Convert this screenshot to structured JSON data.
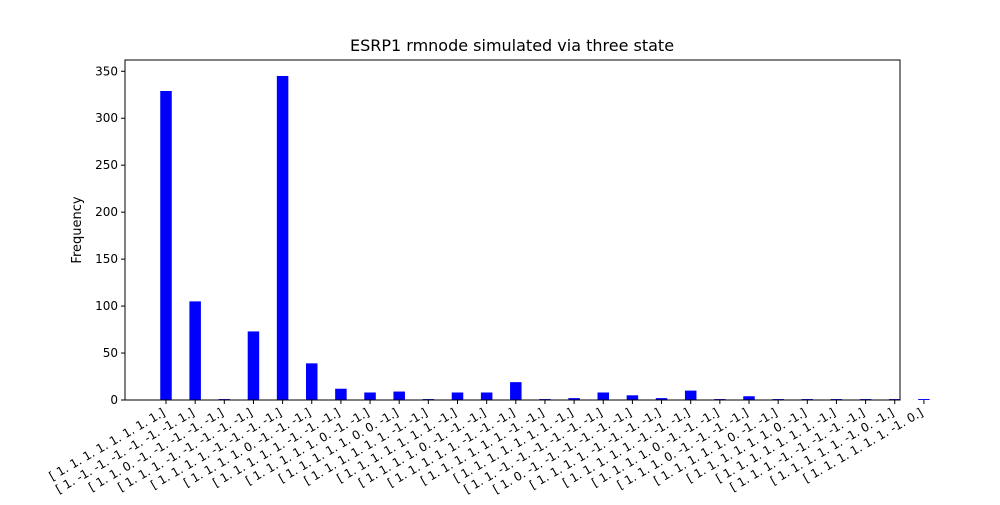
{
  "chart_data": {
    "type": "bar",
    "title": "ESRP1 rmnode simulated via three state",
    "xlabel": "",
    "ylabel": "Frequency",
    "ylim": [
      0,
      362
    ],
    "yticks": [
      0,
      50,
      100,
      150,
      200,
      250,
      300,
      350
    ],
    "grid": false,
    "legend": "none",
    "bar_color": "#0000ff",
    "categories": [
      "[ 1.  1.  1.  1.  1.  1.  1.  1.]",
      "[ 1. -1. -1. -1. -1. -1. -1.  1.]",
      "[ 1.  1.  0. -1. -1. -1. -1. -1.]",
      "[ 1.  1.  1. -1. -1. -1. -1. -1.]",
      "[ 1.  1.  1.  1. -1. -1. -1. -1.]",
      "[ 1.  1.  1.  1.  0. -1. -1. -1.]",
      "[ 1.  1.  1.  1.  1. -1. -1. -1.]",
      "[ 1.  1.  1.  1.  1.  0. -1. -1.]",
      "[ 1.  1.  1.  1.  1.  0.  0. -1.]",
      "[ 1.  1.  1.  1.  1.  1. -1. -1.]",
      "[ 1.  1.  1.  1.  1.  1.  1. -1.]",
      "[ 1.  1.  1.  1.  0. -1. -1. -1.]",
      "[ 1.  1.  1.  1.  1. -1. -1. -1.]",
      "[ 1.  1.  1.  1.  1.  1. -1. -1.]",
      "[ 1.  1.  1.  1.  1.  1.  1. -1.]",
      "[ 1.  1. -1. -1. -1. -1. -1. -1.]",
      "[ 1.  0. -1. -1. -1. -1. -1. -1.]",
      "[ 1.  1.  1.  1. -1. -1. -1. -1.]",
      "[ 1.  1.  1.  1.  1. -1. -1. -1.]",
      "[ 1.  1.  1.  1.  0. -1. -1. -1.]",
      "[ 1.  1.  1.  0. -1. -1. -1. -1.]",
      "[ 1.  1.  1.  1.  1.  0. -1. -1.]",
      "[ 1.  1.  1.  1.  1.  1.  0. -1.]",
      "[ 1.  1.  1.  1.  1.  1.  1. -1.]",
      "[ 1.  1.  1. -1. -1. -1. -1. -1.]",
      "[ 1.  1.  1.  1.  1. -1.  0. -1.]",
      "[ 1.  1.  1.  1.  1.  1. -1.  0.]"
    ],
    "values": [
      329,
      105,
      1,
      73,
      345,
      39,
      12,
      8,
      9,
      1,
      8,
      8,
      19,
      1,
      2,
      8,
      5,
      2,
      10,
      1,
      4,
      1,
      1,
      1,
      1,
      1,
      1
    ]
  }
}
